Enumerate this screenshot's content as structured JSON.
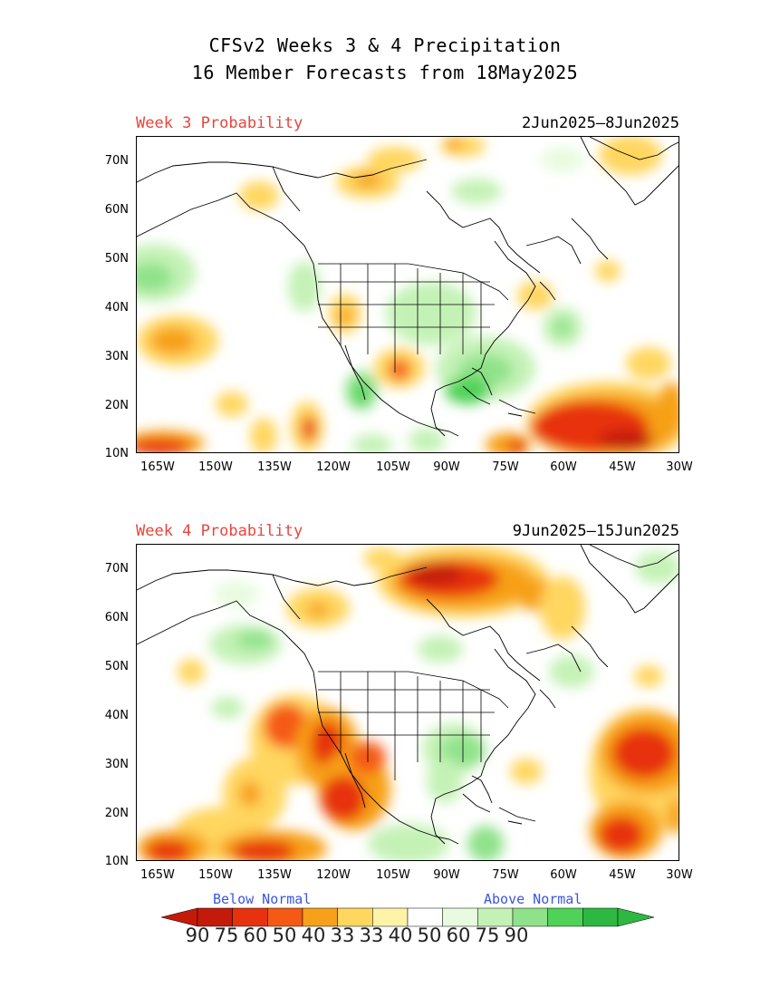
{
  "title_line1": "CFSv2 Weeks 3 & 4 Precipitation",
  "title_line2": "16 Member Forecasts from 18May2025",
  "panels": [
    {
      "label": "Week 3 Probability",
      "dates": "2Jun2025—8Jun2025"
    },
    {
      "label": "Week 4 Probability",
      "dates": "9Jun2025—15Jun2025"
    }
  ],
  "lat_labels": [
    "70N",
    "60N",
    "50N",
    "40N",
    "30N",
    "20N",
    "10N"
  ],
  "lon_labels": [
    "165W",
    "150W",
    "135W",
    "120W",
    "105W",
    "90W",
    "75W",
    "60W",
    "45W",
    "30W"
  ],
  "colorbar": {
    "below_label": "Below Normal",
    "above_label": "Above Normal",
    "numbers": [
      "90",
      "75",
      "60",
      "50",
      "40",
      "33",
      "33",
      "40",
      "50",
      "60",
      "75",
      "90"
    ],
    "colors": [
      "#c41a0a",
      "#e7320f",
      "#f55a14",
      "#f7a019",
      "#ffd65e",
      "#fff3a8",
      "#ffffff",
      "#e8fbe0",
      "#c4f2b6",
      "#8fe28a",
      "#4fd257",
      "#2db842"
    ]
  }
}
